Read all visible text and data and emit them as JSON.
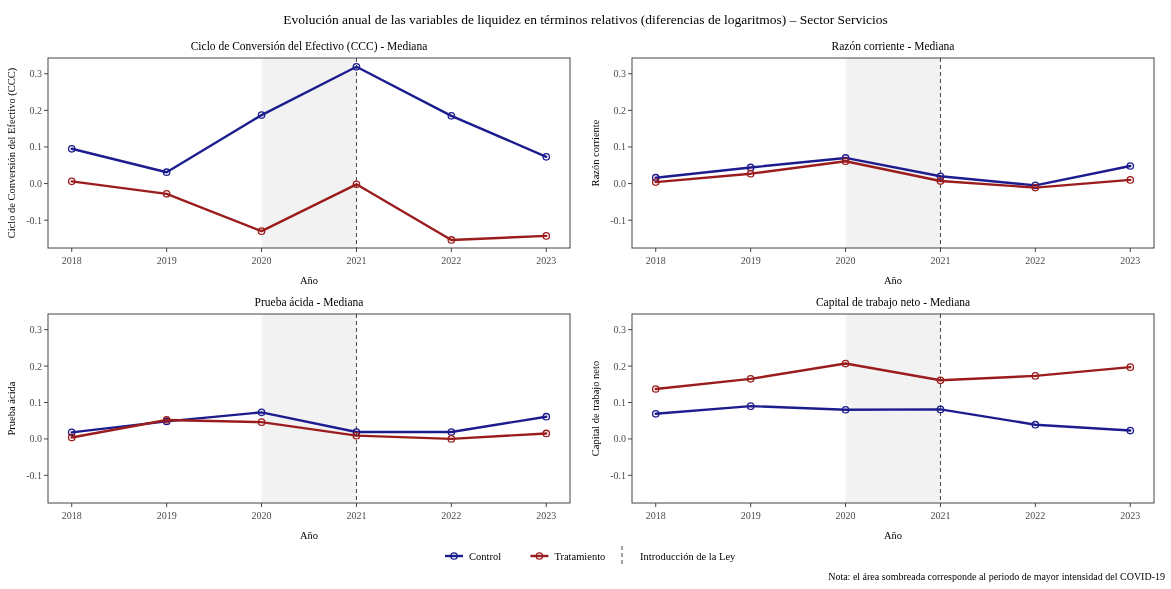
{
  "chart_data": [
    {
      "type": "line",
      "title": "Ciclo de Conversión del Efectivo (CCC) - Mediana",
      "xlabel": "Año",
      "ylabel": "Ciclo de Conversión del Efectivo (CCC)",
      "annotations": [
        "Evolución anual de las variables de liquidez en términos relativos (diferencias de logaritmos) – Sector Servicios"
      ],
      "x": [
        2018,
        2019,
        2020,
        2021,
        2022,
        2023
      ],
      "xlim": [
        2017.75,
        2023.25
      ],
      "xticks": [
        2018,
        2019,
        2020,
        2021,
        2022,
        2023
      ],
      "ylim": [
        -0.176,
        0.343
      ],
      "yticks": [
        {
          "value": -0.1,
          "label": "-0.1"
        },
        {
          "value": 0,
          "label": "0.0"
        },
        {
          "value": 0.1,
          "label": "0.1"
        },
        {
          "value": 0.2,
          "label": "0.2"
        },
        {
          "value": 0.3,
          "label": "0.3"
        }
      ],
      "marker": "circle",
      "legend": "bottom",
      "bands": [
        {
          "axis": "x",
          "from": 2020,
          "to": 2021,
          "color": "#f2f2f2"
        }
      ],
      "ref_lines": [
        {
          "axis": "x",
          "value": 2021,
          "label": "Introducción de la Ley",
          "line_style": "dashed"
        }
      ],
      "series": [
        {
          "name": "Control",
          "color": "#1c1c8f",
          "values": [
            0.095,
            0.031,
            0.187,
            0.319,
            0.185,
            0.073
          ]
        },
        {
          "name": "Tratamiento",
          "color": "#9b1c1c",
          "values": [
            0.006,
            -0.028,
            -0.13,
            -0.002,
            -0.154,
            -0.143
          ]
        }
      ]
    },
    {
      "type": "line",
      "title": "Razón corriente - Mediana",
      "xlabel": "Año",
      "ylabel": "Razón corriente",
      "x": [
        2018,
        2019,
        2020,
        2021,
        2022,
        2023
      ],
      "xlim": [
        2017.75,
        2023.25
      ],
      "xticks": [
        2018,
        2019,
        2020,
        2021,
        2022,
        2023
      ],
      "ylim": [
        -0.176,
        0.343
      ],
      "yticks": [
        {
          "value": -0.1,
          "label": "-0.1"
        },
        {
          "value": 0,
          "label": "0.0"
        },
        {
          "value": 0.1,
          "label": "0.1"
        },
        {
          "value": 0.2,
          "label": "0.2"
        },
        {
          "value": 0.3,
          "label": "0.3"
        }
      ],
      "marker": "circle",
      "bands": [
        {
          "axis": "x",
          "from": 2020,
          "to": 2021,
          "color": "#f2f2f2"
        }
      ],
      "ref_lines": [
        {
          "axis": "x",
          "value": 2021,
          "line_style": "dashed"
        }
      ],
      "series": [
        {
          "color": "#1c1c8f",
          "values": [
            0.016,
            0.044,
            0.07,
            0.02,
            -0.005,
            0.048
          ]
        },
        {
          "color": "#9b1c1c",
          "values": [
            0.004,
            0.027,
            0.061,
            0.007,
            -0.011,
            0.01
          ]
        }
      ]
    },
    {
      "type": "line",
      "title": "Prueba ácida - Mediana",
      "xlabel": "Año",
      "ylabel": "Prueba ácida",
      "x": [
        2018,
        2019,
        2020,
        2021,
        2022,
        2023
      ],
      "xlim": [
        2017.75,
        2023.25
      ],
      "xticks": [
        2018,
        2019,
        2020,
        2021,
        2022,
        2023
      ],
      "ylim": [
        -0.176,
        0.343
      ],
      "yticks": [
        {
          "value": -0.1,
          "label": "-0.1"
        },
        {
          "value": 0,
          "label": "0.0"
        },
        {
          "value": 0.1,
          "label": "0.1"
        },
        {
          "value": 0.2,
          "label": "0.2"
        },
        {
          "value": 0.3,
          "label": "0.3"
        }
      ],
      "marker": "circle",
      "bands": [
        {
          "axis": "x",
          "from": 2020,
          "to": 2021,
          "color": "#f2f2f2"
        }
      ],
      "ref_lines": [
        {
          "axis": "x",
          "value": 2021,
          "line_style": "dashed"
        }
      ],
      "series": [
        {
          "color": "#1c1c8f",
          "values": [
            0.018,
            0.048,
            0.073,
            0.019,
            0.019,
            0.061
          ]
        },
        {
          "color": "#9b1c1c",
          "values": [
            0.004,
            0.052,
            0.046,
            0.009,
            0.0,
            0.015
          ]
        }
      ]
    },
    {
      "type": "line",
      "title": "Capital de trabajo neto - Mediana",
      "xlabel": "Año",
      "ylabel": "Capital de trabajo neto",
      "annotations": [
        "Nota: el área sombreada corresponde al periodo de mayor intensidad del COVID-19"
      ],
      "x": [
        2018,
        2019,
        2020,
        2021,
        2022,
        2023
      ],
      "xlim": [
        2017.75,
        2023.25
      ],
      "xticks": [
        2018,
        2019,
        2020,
        2021,
        2022,
        2023
      ],
      "ylim": [
        -0.176,
        0.343
      ],
      "yticks": [
        {
          "value": -0.1,
          "label": "-0.1"
        },
        {
          "value": 0,
          "label": "0.0"
        },
        {
          "value": 0.1,
          "label": "0.1"
        },
        {
          "value": 0.2,
          "label": "0.2"
        },
        {
          "value": 0.3,
          "label": "0.3"
        }
      ],
      "marker": "circle",
      "bands": [
        {
          "axis": "x",
          "from": 2020,
          "to": 2021,
          "color": "#f2f2f2"
        }
      ],
      "ref_lines": [
        {
          "axis": "x",
          "value": 2021,
          "line_style": "dashed"
        }
      ],
      "series": [
        {
          "color": "#1c1c8f",
          "values": [
            0.069,
            0.09,
            0.08,
            0.081,
            0.039,
            0.023
          ]
        },
        {
          "color": "#9b1c1c",
          "values": [
            0.137,
            0.165,
            0.207,
            0.161,
            0.173,
            0.197
          ]
        }
      ]
    }
  ]
}
